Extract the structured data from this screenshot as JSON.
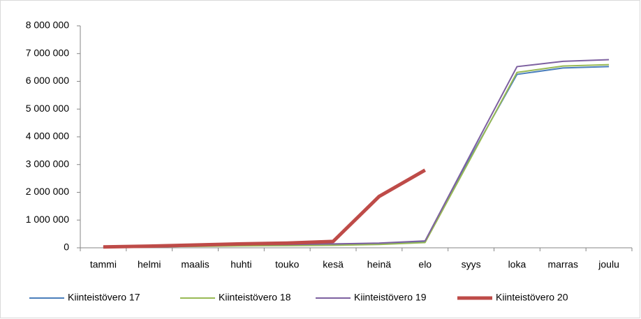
{
  "chart_data": {
    "type": "line",
    "categories": [
      "tammi",
      "helmi",
      "maalis",
      "huhti",
      "touko",
      "kesä",
      "heinä",
      "elo",
      "syys",
      "loka",
      "marras",
      "joulu"
    ],
    "series": [
      {
        "name": "Kiinteistövero 17",
        "color": "#4a7ebb",
        "values": [
          30000,
          50000,
          70000,
          90000,
          100000,
          120000,
          150000,
          220000,
          3300000,
          6250000,
          6480000,
          6530000
        ]
      },
      {
        "name": "Kiinteistövero 18",
        "color": "#98b954",
        "values": [
          20000,
          40000,
          50000,
          70000,
          80000,
          90000,
          120000,
          190000,
          3250000,
          6320000,
          6550000,
          6600000
        ]
      },
      {
        "name": "Kiinteistövero 19",
        "color": "#7d60a0",
        "values": [
          30000,
          60000,
          80000,
          110000,
          120000,
          140000,
          170000,
          250000,
          3400000,
          6530000,
          6720000,
          6780000
        ]
      },
      {
        "name": "Kiinteistövero 20",
        "color": "#be4b48",
        "values": [
          30000,
          60000,
          100000,
          140000,
          170000,
          230000,
          1850000,
          2800000,
          null,
          null,
          null,
          null
        ]
      }
    ],
    "ylim": [
      0,
      8000000
    ],
    "yticks": [
      {
        "value": 0,
        "label": "0"
      },
      {
        "value": 1000000,
        "label": "1 000 000"
      },
      {
        "value": 2000000,
        "label": "2 000 000"
      },
      {
        "value": 3000000,
        "label": "3 000 000"
      },
      {
        "value": 4000000,
        "label": "4 000 000"
      },
      {
        "value": 5000000,
        "label": "5 000 000"
      },
      {
        "value": 6000000,
        "label": "6 000 000"
      },
      {
        "value": 7000000,
        "label": "7 000 000"
      },
      {
        "value": 8000000,
        "label": "8 000 000"
      }
    ],
    "grid": false,
    "legend": "bottom"
  }
}
